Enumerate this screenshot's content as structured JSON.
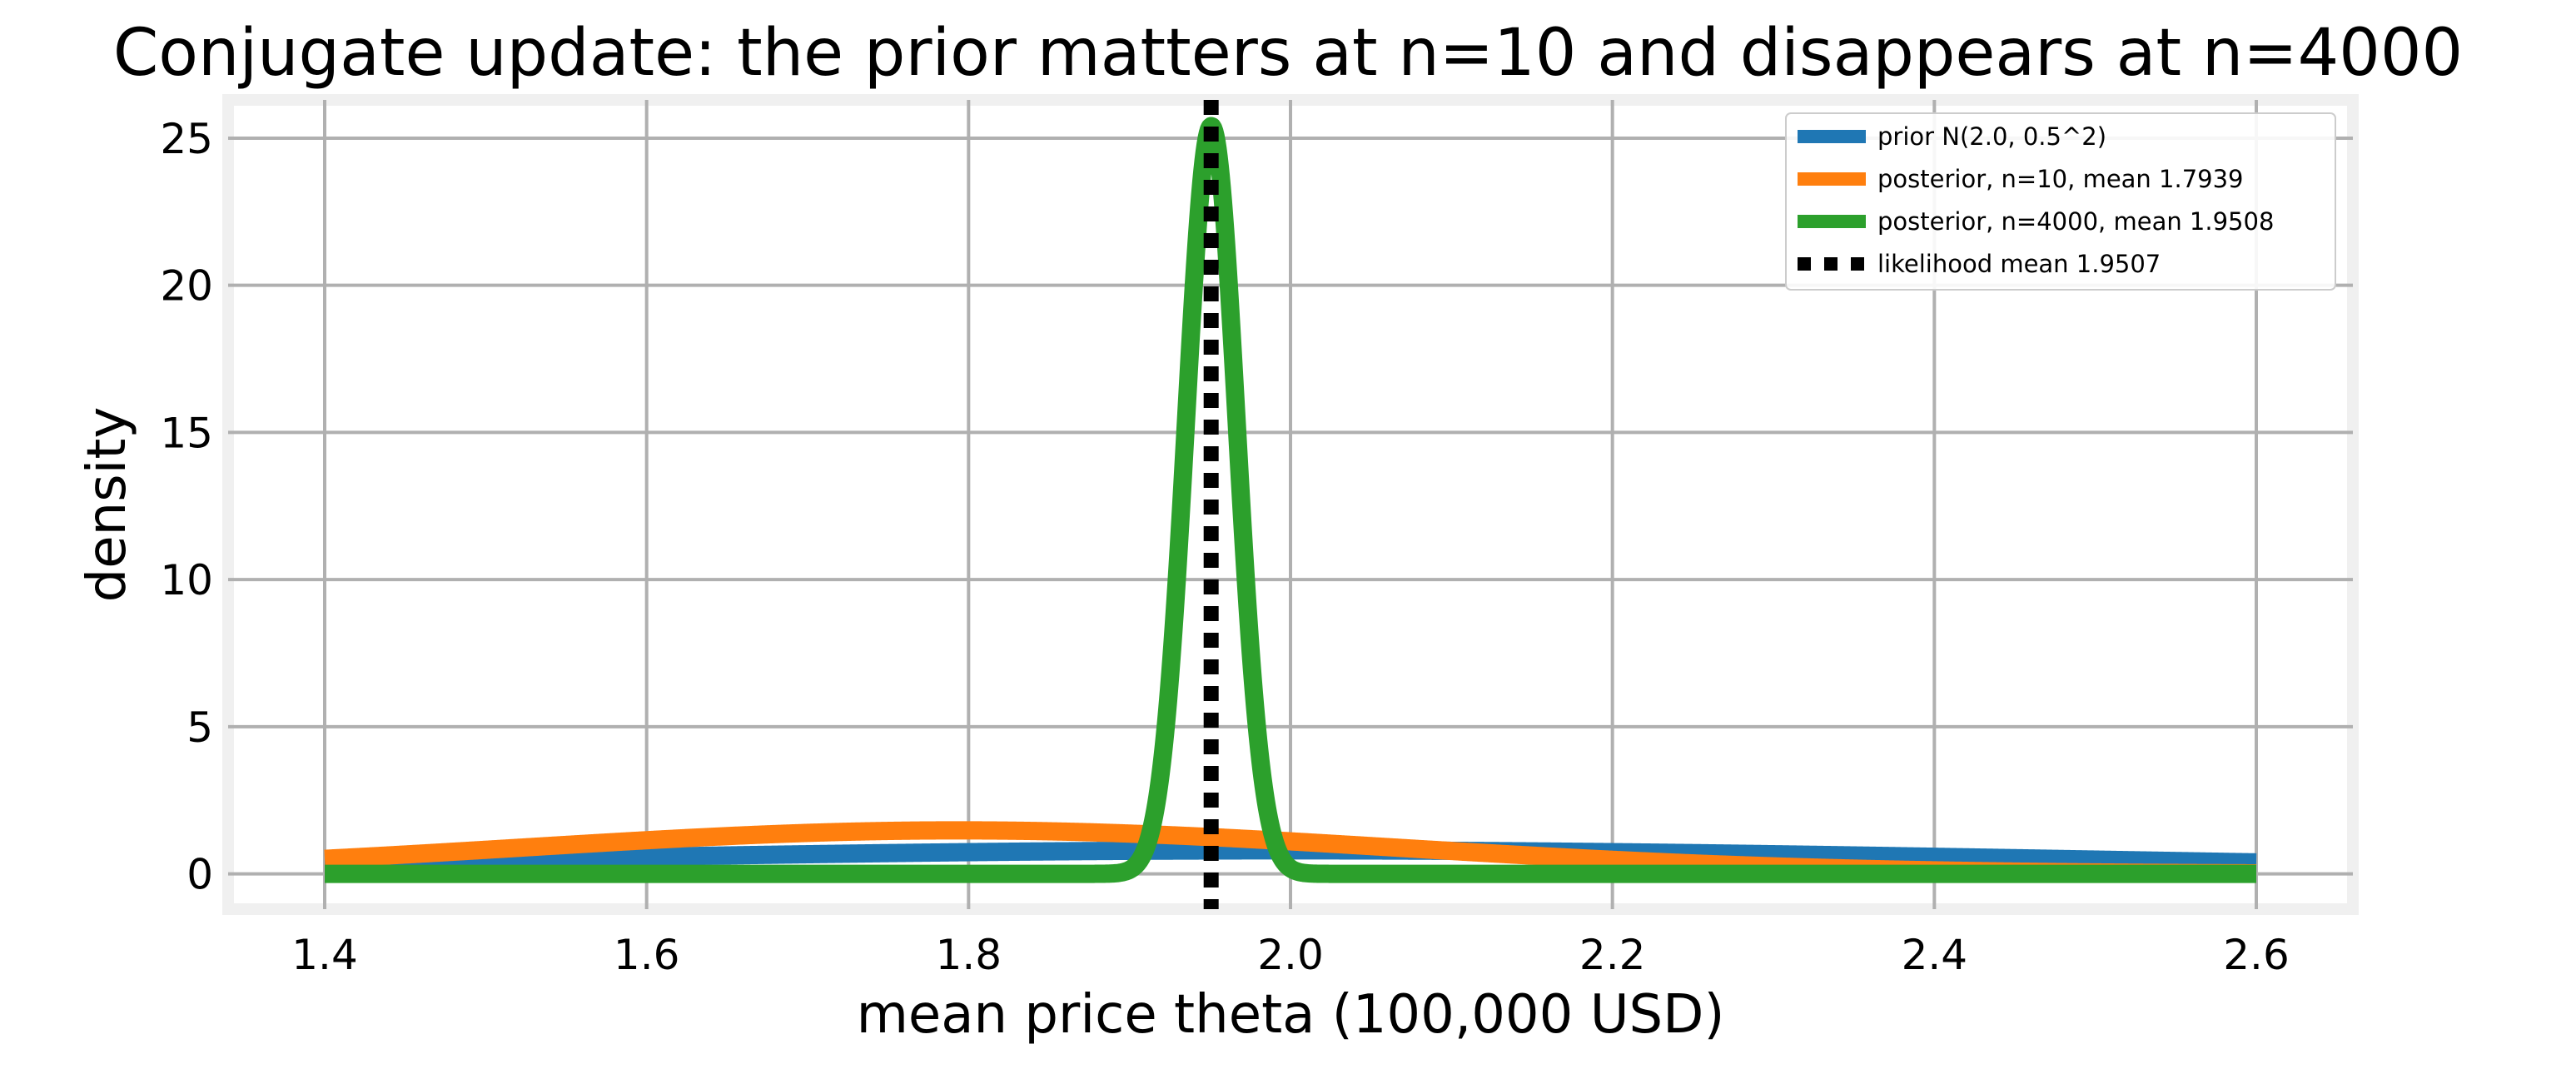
{
  "chart_data": {
    "type": "line",
    "title": "Conjugate update: the prior matters at n=10 and disappears at n=4000",
    "xlabel": "mean price theta (100,000 USD)",
    "ylabel": "density",
    "xlim": [
      1.34,
      2.66
    ],
    "ylim": [
      -1.2,
      26.3
    ],
    "xticks": [
      1.4,
      1.6,
      1.8,
      2.0,
      2.2,
      2.4,
      2.6
    ],
    "xtick_labels": [
      "1.4",
      "1.6",
      "1.8",
      "2.0",
      "2.2",
      "2.4",
      "2.6"
    ],
    "yticks": [
      0,
      5,
      10,
      15,
      20,
      25
    ],
    "ytick_labels": [
      "0",
      "5",
      "10",
      "15",
      "20",
      "25"
    ],
    "x_range": [
      1.4,
      2.6
    ],
    "grid": true,
    "legend_position": "top-right",
    "series": [
      {
        "name": "prior N(2.0, 0.5^2)",
        "kind": "normal",
        "mean": 2.0,
        "sd": 0.5,
        "color": "#1f77b4",
        "style": "solid"
      },
      {
        "name": "posterior, n=10, mean 1.7939",
        "kind": "normal",
        "mean": 1.7939,
        "sd": 0.27,
        "color": "#ff7f0e",
        "style": "solid"
      },
      {
        "name": "posterior, n=4000, mean 1.9508",
        "kind": "normal",
        "mean": 1.9508,
        "sd": 0.0157,
        "color": "#2ca02c",
        "style": "solid"
      },
      {
        "name": "likelihood mean 1.9507",
        "kind": "vline",
        "x": 1.9507,
        "color": "#000000",
        "style": "dotted"
      }
    ]
  }
}
